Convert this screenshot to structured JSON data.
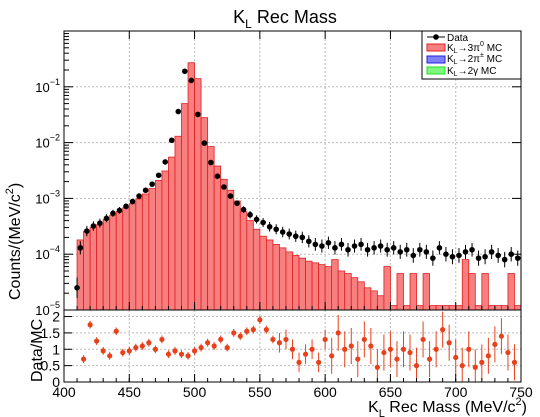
{
  "chart_data": [
    {
      "type": "histogram",
      "title_main": "K",
      "title_sub": "L",
      "title_rest": " Rec Mass",
      "xlabel": "K_L Rec Mass (MeV/c^2)",
      "xlabel_parts": {
        "a": "K",
        "a_sub": "L",
        "b": " Rec Mass (MeV/c",
        "b_sup": "2",
        "c": ")"
      },
      "ylabel": "Counts/(MeV/c^2)",
      "ylabel_parts": {
        "a": "Counts/(MeV/c",
        "a_sup": "2",
        "b": ")"
      },
      "yscale": "log",
      "xlim": [
        400,
        750
      ],
      "ylim": [
        1e-05,
        1
      ],
      "x_ticks": [
        400,
        450,
        500,
        550,
        600,
        650,
        700,
        750
      ],
      "y_ticks": [
        {
          "value": 1e-05,
          "base": "10",
          "exp": "−5"
        },
        {
          "value": 0.0001,
          "base": "10",
          "exp": "−4"
        },
        {
          "value": 0.001,
          "base": "10",
          "exp": "−3"
        },
        {
          "value": 0.01,
          "base": "10",
          "exp": "−2"
        },
        {
          "value": 0.1,
          "base": "10",
          "exp": "−1"
        }
      ],
      "grid": true,
      "legend": {
        "placement": "top-right",
        "entries": [
          {
            "label": "Data",
            "style": "marker",
            "color": "#000000"
          },
          {
            "label": "K_L→3π^0 MC",
            "text_parts": [
              "K",
              "L",
              "→3π",
              "0",
              " MC"
            ],
            "style": "fill",
            "color": "#f77f7f",
            "edge": "#e02020"
          },
          {
            "label": "K_L→2π MC",
            "text_parts": [
              "K",
              "L",
              "→2π",
              "±",
              " MC"
            ],
            "style": "fill",
            "color": "#7f7ff7",
            "edge": "#2020e0"
          },
          {
            "label": "K_L→2γ MC",
            "text_parts": [
              "K",
              "L",
              "→2γ",
              "",
              " MC"
            ],
            "style": "fill",
            "color": "#7ff77f",
            "edge": "#20e020"
          }
        ]
      },
      "bin_width": 5,
      "mc_3pi0": {
        "name": "K_L→3π^0 MC",
        "bin_low_edges": [
          410,
          415,
          420,
          425,
          430,
          435,
          440,
          445,
          450,
          455,
          460,
          465,
          470,
          475,
          480,
          485,
          490,
          495,
          500,
          505,
          510,
          515,
          520,
          525,
          530,
          535,
          540,
          545,
          550,
          555,
          560,
          565,
          570,
          575,
          580,
          585,
          590,
          595,
          600,
          605,
          610,
          615,
          620,
          625,
          630,
          635,
          640,
          645,
          650,
          655,
          660,
          665,
          670,
          675,
          680,
          685,
          690,
          695,
          700,
          705,
          710,
          715,
          720,
          725,
          730,
          735,
          740,
          745
        ],
        "values": [
          0.00018,
          0.00026,
          0.0003,
          0.00034,
          0.00042,
          0.0005,
          0.00058,
          0.00068,
          0.0008,
          0.00098,
          0.0012,
          0.0015,
          0.0021,
          0.0031,
          0.0055,
          0.013,
          0.05,
          0.27,
          0.14,
          0.028,
          0.0085,
          0.0038,
          0.0022,
          0.0014,
          0.0009,
          0.00058,
          0.0004,
          0.00028,
          0.00021,
          0.00018,
          0.00015,
          0.00013,
          0.00011,
          9.5e-05,
          8.5e-05,
          7.5e-05,
          7e-05,
          6.5e-05,
          6e-05,
          8e-05,
          5e-05,
          4.5e-05,
          3.8e-05,
          3.2e-05,
          2.5e-05,
          2.2e-05,
          1.8e-05,
          6e-05,
          1.2e-05,
          4.5e-05,
          1.2e-05,
          4.5e-05,
          1.2e-05,
          4.5e-05,
          1.2e-05,
          1.2e-05,
          1.2e-05,
          1.2e-05,
          1.2e-05,
          8e-05,
          4.5e-05,
          1.2e-05,
          4.5e-05,
          1.2e-05,
          1.2e-05,
          1.2e-05,
          4.5e-05,
          1.2e-05
        ]
      },
      "data_points": {
        "name": "Data",
        "x": [
          410,
          412.5,
          417.5,
          422.5,
          427.5,
          432.5,
          437.5,
          442.5,
          447.5,
          452.5,
          457.5,
          462.5,
          467.5,
          472.5,
          477.5,
          482.5,
          487.5,
          492.5,
          497.5,
          502.5,
          507.5,
          512.5,
          517.5,
          522.5,
          527.5,
          532.5,
          537.5,
          542.5,
          547.5,
          552.5,
          557.5,
          562.5,
          567.5,
          572.5,
          577.5,
          582.5,
          587.5,
          592.5,
          597.5,
          602.5,
          607.5,
          612.5,
          617.5,
          622.5,
          627.5,
          632.5,
          637.5,
          642.5,
          647.5,
          652.5,
          657.5,
          662.5,
          667.5,
          672.5,
          677.5,
          682.5,
          687.5,
          692.5,
          697.5,
          702.5,
          707.5,
          712.5,
          717.5,
          722.5,
          727.5,
          732.5,
          737.5,
          742.5,
          747.5
        ],
        "y": [
          2.5e-05,
          0.00013,
          0.00026,
          0.00032,
          0.00036,
          0.00044,
          0.00054,
          0.00061,
          0.00072,
          0.00088,
          0.0011,
          0.0014,
          0.0018,
          0.0026,
          0.0045,
          0.011,
          0.036,
          0.19,
          0.13,
          0.032,
          0.0098,
          0.0044,
          0.0025,
          0.0016,
          0.0011,
          0.00082,
          0.00063,
          0.00051,
          0.00042,
          0.00037,
          0.00031,
          0.00028,
          0.00025,
          0.00023,
          0.00021,
          0.0002,
          0.00017,
          0.00015,
          0.00014,
          0.00016,
          0.00013,
          0.00015,
          0.00012,
          0.00014,
          0.00015,
          0.00012,
          0.00013,
          0.00014,
          0.00012,
          0.00013,
          0.00011,
          0.00012,
          9.5e-05,
          0.00012,
          0.00011,
          8.5e-05,
          0.00013,
          0.0001,
          9e-05,
          9.5e-05,
          0.00011,
          0.00012,
          8.5e-05,
          9e-05,
          0.00011,
          9.5e-05,
          8e-05,
          0.0001,
          8.5e-05
        ]
      }
    },
    {
      "type": "scatter",
      "ylabel": "Data/MC",
      "xlim": [
        400,
        750
      ],
      "ylim": [
        0,
        2.2
      ],
      "y_ticks": [
        "0",
        "0.5",
        "1",
        "1.5",
        "2"
      ],
      "y_tick_values": [
        0,
        0.5,
        1,
        1.5,
        2
      ],
      "points_color": "#e8401a",
      "x": [
        415,
        420,
        425,
        430,
        435,
        440,
        445,
        450,
        455,
        460,
        465,
        470,
        475,
        480,
        485,
        490,
        495,
        500,
        505,
        510,
        515,
        520,
        525,
        530,
        535,
        540,
        545,
        550,
        555,
        560,
        565,
        570,
        575,
        580,
        585,
        590,
        595,
        600,
        605,
        610,
        615,
        620,
        625,
        630,
        635,
        640,
        645,
        650,
        655,
        660,
        665,
        670,
        675,
        680,
        685,
        690,
        695,
        700,
        705,
        710,
        715,
        720,
        725,
        730,
        735,
        740,
        745
      ],
      "y": [
        0.7,
        1.75,
        1.25,
        0.95,
        0.8,
        1.55,
        0.9,
        0.95,
        1.05,
        1.1,
        1.2,
        1.0,
        1.3,
        0.85,
        0.95,
        0.85,
        0.8,
        0.95,
        1.05,
        1.2,
        1.1,
        1.3,
        1.05,
        1.5,
        1.4,
        1.55,
        1.6,
        1.9,
        1.6,
        1.3,
        1.2,
        1.3,
        1.0,
        0.6,
        0.85,
        1.0,
        0.6,
        1.3,
        0.8,
        1.5,
        1.0,
        1.1,
        0.7,
        1.3,
        1.1,
        0.45,
        0.9,
        1.0,
        0.7,
        1.0,
        0.9,
        0.5,
        1.3,
        0.7,
        1.0,
        1.6,
        1.2,
        0.75,
        0.5,
        1.0,
        0.45,
        0.6,
        0.8,
        1.15,
        1.4,
        0.9,
        0.6
      ]
    }
  ]
}
